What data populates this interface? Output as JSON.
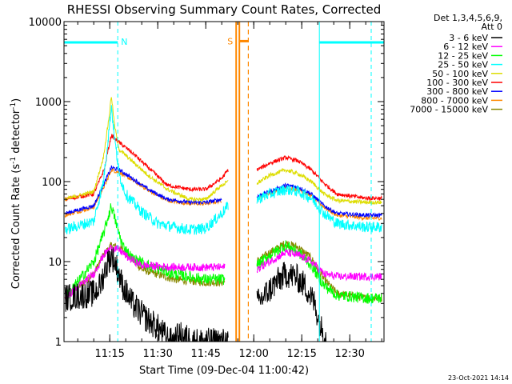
{
  "chart_data": {
    "type": "line",
    "title": "RHESSI Observing Summary Count Rates, Corrected",
    "xlabel": "Start Time (09-Dec-04 11:00:42)",
    "ylabel_main": "Corrected Count Rate (s",
    "ylabel_sup1": "-1",
    "ylabel_mid": " detector",
    "ylabel_sup2": "-1",
    "ylabel_end": ")",
    "footer": "23-Oct-2021 14:14",
    "y_scale": "log",
    "ylim": [
      1,
      10000
    ],
    "xlim_minutes": [
      0.7,
      100.7
    ],
    "x_ticks": [
      {
        "min": 15,
        "label": "11:15"
      },
      {
        "min": 30,
        "label": "11:30"
      },
      {
        "min": 45,
        "label": "11:45"
      },
      {
        "min": 60,
        "label": "12:00"
      },
      {
        "min": 75,
        "label": "12:15"
      },
      {
        "min": 90,
        "label": "12:30"
      }
    ],
    "y_ticks": [
      {
        "v": 1,
        "label": "1"
      },
      {
        "v": 10,
        "label": "10"
      },
      {
        "v": 100,
        "label": "100"
      },
      {
        "v": 1000,
        "label": "1000"
      },
      {
        "v": 10000,
        "label": "10000"
      }
    ],
    "legend_header": [
      "Det 1,3,4,5,6,9,",
      "Att 0"
    ],
    "series": [
      {
        "name": "3 - 6 keV",
        "color": "#000000",
        "seg1": [
          [
            1,
            3.5
          ],
          [
            10,
            4
          ],
          [
            12,
            5
          ],
          [
            14,
            9
          ],
          [
            15.5,
            12
          ],
          [
            17,
            9
          ],
          [
            19,
            5
          ],
          [
            22,
            3
          ],
          [
            26,
            2
          ],
          [
            30,
            1.5
          ],
          [
            34,
            1
          ],
          [
            37,
            1.2
          ],
          [
            42,
            1
          ],
          [
            46,
            1
          ],
          [
            50,
            1
          ],
          [
            52,
            1
          ]
        ],
        "seg2": [
          [
            61,
            3
          ],
          [
            64,
            4
          ],
          [
            67,
            5.5
          ],
          [
            70,
            7
          ],
          [
            73,
            6.5
          ],
          [
            76,
            5
          ],
          [
            79,
            3
          ],
          [
            81,
            1.5
          ],
          [
            83,
            1
          ]
        ]
      },
      {
        "name": "6 - 12 keV",
        "color": "#ff00ff",
        "seg1": [
          [
            1,
            3.5
          ],
          [
            10,
            7
          ],
          [
            13,
            12
          ],
          [
            15.5,
            15
          ],
          [
            18,
            14
          ],
          [
            21,
            11
          ],
          [
            25,
            9
          ],
          [
            35,
            8.5
          ],
          [
            45,
            8.5
          ],
          [
            51,
            8.5
          ]
        ],
        "seg2": [
          [
            61,
            8
          ],
          [
            65,
            10
          ],
          [
            70,
            13
          ],
          [
            74,
            12
          ],
          [
            78,
            10
          ],
          [
            82,
            7
          ],
          [
            86,
            6.5
          ],
          [
            95,
            6.5
          ],
          [
            100,
            6.5
          ]
        ]
      },
      {
        "name": "12 - 25 keV",
        "color": "#00ff00",
        "seg1": [
          [
            1,
            3.5
          ],
          [
            10,
            10
          ],
          [
            13,
            22
          ],
          [
            15.5,
            50
          ],
          [
            17,
            30
          ],
          [
            19,
            16
          ],
          [
            22,
            11
          ],
          [
            27,
            9
          ],
          [
            35,
            7
          ],
          [
            45,
            6
          ],
          [
            51,
            6
          ]
        ],
        "seg2": [
          [
            61,
            9
          ],
          [
            65,
            12
          ],
          [
            70,
            16
          ],
          [
            74,
            13
          ],
          [
            78,
            9
          ],
          [
            82,
            5
          ],
          [
            86,
            3.8
          ],
          [
            95,
            3.5
          ],
          [
            100,
            3.5
          ]
        ]
      },
      {
        "name": "25 - 50 keV",
        "color": "#00ffff",
        "seg1": [
          [
            1,
            25
          ],
          [
            10,
            32
          ],
          [
            13,
            100
          ],
          [
            14.8,
            450
          ],
          [
            15.5,
            900
          ],
          [
            16.5,
            350
          ],
          [
            18,
            120
          ],
          [
            20,
            70
          ],
          [
            25,
            42
          ],
          [
            30,
            30
          ],
          [
            35,
            27
          ],
          [
            40,
            25
          ],
          [
            45,
            26
          ],
          [
            50,
            40
          ],
          [
            52,
            50
          ]
        ],
        "seg2": [
          [
            61,
            60
          ],
          [
            65,
            70
          ],
          [
            70,
            80
          ],
          [
            74,
            75
          ],
          [
            78,
            62
          ],
          [
            82,
            40
          ],
          [
            86,
            30
          ],
          [
            95,
            27
          ],
          [
            100,
            27
          ]
        ]
      },
      {
        "name": "50 - 100 keV",
        "color": "#dddd00",
        "seg1": [
          [
            1,
            60
          ],
          [
            10,
            75
          ],
          [
            13,
            200
          ],
          [
            14.8,
            650
          ],
          [
            15.5,
            1200
          ],
          [
            16.5,
            500
          ],
          [
            18,
            250
          ],
          [
            22,
            180
          ],
          [
            27,
            120
          ],
          [
            33,
            80
          ],
          [
            40,
            60
          ],
          [
            45,
            60
          ],
          [
            50,
            90
          ],
          [
            52,
            100
          ]
        ],
        "seg2": [
          [
            61,
            95
          ],
          [
            65,
            120
          ],
          [
            70,
            140
          ],
          [
            74,
            125
          ],
          [
            78,
            100
          ],
          [
            82,
            70
          ],
          [
            86,
            58
          ],
          [
            95,
            55
          ],
          [
            100,
            55
          ]
        ]
      },
      {
        "name": "100 - 300 keV",
        "color": "#ff0000",
        "seg1": [
          [
            1,
            60
          ],
          [
            10,
            70
          ],
          [
            13.5,
            150
          ],
          [
            14,
            200
          ],
          [
            15.5,
            380
          ],
          [
            17,
            330
          ],
          [
            22,
            230
          ],
          [
            27,
            150
          ],
          [
            33,
            90
          ],
          [
            40,
            80
          ],
          [
            45,
            80
          ],
          [
            50,
            110
          ],
          [
            52,
            140
          ]
        ],
        "seg2": [
          [
            61,
            140
          ],
          [
            65,
            170
          ],
          [
            70,
            200
          ],
          [
            74,
            180
          ],
          [
            78,
            140
          ],
          [
            82,
            95
          ],
          [
            86,
            70
          ],
          [
            95,
            62
          ],
          [
            100,
            62
          ]
        ]
      },
      {
        "name": "300 - 800 keV",
        "color": "#0000ff",
        "seg1": [
          [
            1,
            40
          ],
          [
            10,
            50
          ],
          [
            14,
            110
          ],
          [
            15.5,
            150
          ],
          [
            18,
            140
          ],
          [
            22,
            110
          ],
          [
            27,
            80
          ],
          [
            33,
            60
          ],
          [
            40,
            55
          ],
          [
            45,
            55
          ],
          [
            50,
            60
          ]
        ],
        "seg2": [
          [
            61,
            65
          ],
          [
            65,
            75
          ],
          [
            70,
            90
          ],
          [
            74,
            85
          ],
          [
            78,
            70
          ],
          [
            82,
            50
          ],
          [
            86,
            40
          ],
          [
            95,
            38
          ],
          [
            100,
            38
          ]
        ]
      },
      {
        "name": "800 - 7000 keV",
        "color": "#ff8800",
        "seg1": [
          [
            1,
            38
          ],
          [
            10,
            48
          ],
          [
            14,
            100
          ],
          [
            15.5,
            140
          ],
          [
            18,
            130
          ],
          [
            22,
            105
          ],
          [
            27,
            78
          ],
          [
            33,
            58
          ],
          [
            40,
            53
          ],
          [
            45,
            53
          ],
          [
            50,
            58
          ]
        ],
        "seg2": [
          [
            61,
            62
          ],
          [
            65,
            72
          ],
          [
            70,
            85
          ],
          [
            74,
            80
          ],
          [
            78,
            66
          ],
          [
            82,
            48
          ],
          [
            86,
            38
          ],
          [
            95,
            35
          ],
          [
            100,
            35
          ]
        ]
      },
      {
        "name": "7000 - 15000 keV",
        "color": "#888800",
        "seg1": [
          [
            1,
            3.5
          ],
          [
            10,
            7
          ],
          [
            13,
            12
          ],
          [
            15.5,
            16
          ],
          [
            18,
            15
          ],
          [
            21,
            12
          ],
          [
            25,
            8
          ],
          [
            35,
            6
          ],
          [
            45,
            5.5
          ],
          [
            51,
            5.5
          ]
        ],
        "seg2": [
          [
            61,
            10
          ],
          [
            65,
            13
          ],
          [
            70,
            17
          ],
          [
            74,
            15
          ],
          [
            78,
            11
          ],
          [
            82,
            6
          ],
          [
            86,
            4
          ],
          [
            95,
            3.5
          ],
          [
            100,
            3.5
          ]
        ]
      }
    ],
    "attenuator_color": "#00ffff",
    "attenuator_state_line": [
      {
        "x0": 0.7,
        "x1": 17.5,
        "v": 5500,
        "label": "N"
      },
      {
        "x0": 80.5,
        "x1": 100.7,
        "v": 5500,
        "label": ""
      }
    ],
    "attenuator_vlines": [
      {
        "min": 0.7,
        "style": "solid"
      },
      {
        "min": 17.5,
        "style": "dashed"
      },
      {
        "min": 80.5,
        "style": "solid"
      },
      {
        "min": 96.7,
        "style": "dashed"
      }
    ],
    "saa_color": "#ff8800",
    "saa": {
      "x0": 54.5,
      "x1": 58.3,
      "v": 5700,
      "label": "S"
    }
  }
}
